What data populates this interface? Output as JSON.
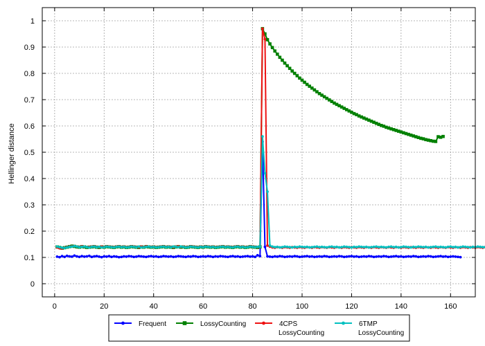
{
  "chart_data": {
    "type": "line",
    "title": "",
    "xlabel": "",
    "ylabel": "Hellinger distance",
    "xlim": [
      -5,
      170
    ],
    "ylim": [
      -0.05,
      1.05
    ],
    "xticks": [
      0,
      20,
      40,
      60,
      80,
      100,
      120,
      140,
      160
    ],
    "yticks": [
      0,
      0.1,
      0.2,
      0.3,
      0.4,
      0.5,
      0.6,
      0.7,
      0.8,
      0.9,
      1
    ],
    "grid": true,
    "legend_position": "bottom-center",
    "x_start": 1,
    "x_step": 1,
    "series": [
      {
        "name": "Frequent",
        "color": "#0000ff",
        "marker": "circle",
        "values": [
          0.103,
          0.101,
          0.105,
          0.102,
          0.106,
          0.104,
          0.103,
          0.107,
          0.104,
          0.102,
          0.105,
          0.103,
          0.104,
          0.106,
          0.102,
          0.104,
          0.105,
          0.103,
          0.101,
          0.104,
          0.103,
          0.105,
          0.102,
          0.104,
          0.103,
          0.101,
          0.102,
          0.104,
          0.103,
          0.105,
          0.104,
          0.102,
          0.103,
          0.105,
          0.104,
          0.103,
          0.102,
          0.104,
          0.105,
          0.103,
          0.104,
          0.102,
          0.103,
          0.105,
          0.104,
          0.103,
          0.104,
          0.102,
          0.103,
          0.105,
          0.104,
          0.103,
          0.102,
          0.104,
          0.103,
          0.105,
          0.104,
          0.102,
          0.103,
          0.104,
          0.103,
          0.105,
          0.104,
          0.102,
          0.104,
          0.103,
          0.105,
          0.104,
          0.103,
          0.102,
          0.104,
          0.105,
          0.103,
          0.104,
          0.102,
          0.103,
          0.104,
          0.105,
          0.103,
          0.104,
          0.102,
          0.108,
          0.105,
          0.54,
          0.14,
          0.104,
          0.103,
          0.102,
          0.104,
          0.103,
          0.105,
          0.104,
          0.102,
          0.103,
          0.104,
          0.103,
          0.105,
          0.104,
          0.102,
          0.103,
          0.104,
          0.105,
          0.103,
          0.104,
          0.102,
          0.103,
          0.104,
          0.103,
          0.105,
          0.104,
          0.102,
          0.103,
          0.104,
          0.103,
          0.105,
          0.104,
          0.102,
          0.103,
          0.104,
          0.105,
          0.103,
          0.104,
          0.102,
          0.103,
          0.104,
          0.103,
          0.105,
          0.104,
          0.102,
          0.103,
          0.104,
          0.103,
          0.105,
          0.104,
          0.102,
          0.103,
          0.104,
          0.105,
          0.103,
          0.104,
          0.102,
          0.103,
          0.104,
          0.103,
          0.105,
          0.104,
          0.102,
          0.103,
          0.104,
          0.103,
          0.105,
          0.104,
          0.102,
          0.103,
          0.104,
          0.105,
          0.103,
          0.104,
          0.102,
          0.103,
          0.104,
          0.103,
          0.102,
          0.101
        ]
      },
      {
        "name": "LossyCounting",
        "color": "#008000",
        "marker": "square",
        "values": [
          0.14,
          0.138,
          0.135,
          0.137,
          0.139,
          0.141,
          0.143,
          0.142,
          0.14,
          0.139,
          0.141,
          0.14,
          0.138,
          0.139,
          0.14,
          0.141,
          0.139,
          0.138,
          0.14,
          0.139,
          0.141,
          0.14,
          0.139,
          0.138,
          0.14,
          0.141,
          0.139,
          0.14,
          0.138,
          0.139,
          0.141,
          0.14,
          0.139,
          0.138,
          0.14,
          0.139,
          0.141,
          0.14,
          0.139,
          0.14,
          0.138,
          0.139,
          0.14,
          0.141,
          0.139,
          0.14,
          0.139,
          0.138,
          0.14,
          0.141,
          0.139,
          0.14,
          0.138,
          0.139,
          0.141,
          0.14,
          0.139,
          0.138,
          0.14,
          0.139,
          0.141,
          0.14,
          0.139,
          0.14,
          0.138,
          0.139,
          0.14,
          0.141,
          0.139,
          0.14,
          0.139,
          0.138,
          0.14,
          0.141,
          0.139,
          0.14,
          0.138,
          0.139,
          0.141,
          0.14,
          0.139,
          0.138,
          0.14,
          0.97,
          0.95,
          0.928,
          0.912,
          0.898,
          0.885,
          0.873,
          0.861,
          0.85,
          0.839,
          0.829,
          0.819,
          0.809,
          0.8,
          0.791,
          0.782,
          0.774,
          0.766,
          0.758,
          0.751,
          0.744,
          0.737,
          0.73,
          0.723,
          0.717,
          0.711,
          0.705,
          0.699,
          0.693,
          0.687,
          0.682,
          0.677,
          0.672,
          0.667,
          0.662,
          0.657,
          0.652,
          0.647,
          0.643,
          0.638,
          0.634,
          0.63,
          0.626,
          0.622,
          0.618,
          0.614,
          0.61,
          0.606,
          0.602,
          0.599,
          0.595,
          0.592,
          0.589,
          0.586,
          0.583,
          0.58,
          0.577,
          0.574,
          0.571,
          0.568,
          0.565,
          0.562,
          0.559,
          0.556,
          0.553,
          0.551,
          0.548,
          0.546,
          0.544,
          0.542,
          0.541,
          0.559,
          0.557,
          0.56
        ]
      },
      {
        "name": "4CPS LossyCounting",
        "color": "#ee1111",
        "marker": "circle",
        "values": [
          0.138,
          0.135,
          0.134,
          0.137,
          0.139,
          0.141,
          0.142,
          0.143,
          0.141,
          0.14,
          0.142,
          0.141,
          0.139,
          0.14,
          0.141,
          0.142,
          0.14,
          0.139,
          0.141,
          0.14,
          0.142,
          0.141,
          0.14,
          0.139,
          0.141,
          0.142,
          0.14,
          0.141,
          0.139,
          0.14,
          0.142,
          0.141,
          0.14,
          0.139,
          0.141,
          0.14,
          0.142,
          0.141,
          0.14,
          0.141,
          0.139,
          0.14,
          0.141,
          0.142,
          0.14,
          0.141,
          0.14,
          0.139,
          0.141,
          0.142,
          0.14,
          0.141,
          0.139,
          0.14,
          0.142,
          0.141,
          0.14,
          0.139,
          0.141,
          0.14,
          0.142,
          0.141,
          0.14,
          0.141,
          0.139,
          0.14,
          0.141,
          0.142,
          0.14,
          0.141,
          0.14,
          0.139,
          0.141,
          0.142,
          0.14,
          0.141,
          0.139,
          0.14,
          0.142,
          0.141,
          0.14,
          0.139,
          0.141,
          0.97,
          0.93,
          0.145,
          0.141,
          0.138,
          0.137,
          0.139,
          0.138,
          0.137,
          0.139,
          0.138,
          0.137,
          0.139,
          0.138,
          0.137,
          0.139,
          0.138,
          0.137,
          0.139,
          0.138,
          0.137,
          0.139,
          0.138,
          0.137,
          0.139,
          0.138,
          0.137,
          0.139,
          0.138,
          0.137,
          0.139,
          0.138,
          0.137,
          0.139,
          0.138,
          0.137,
          0.139,
          0.138,
          0.137,
          0.139,
          0.138,
          0.137,
          0.139,
          0.138,
          0.137,
          0.139,
          0.138,
          0.137,
          0.139,
          0.138,
          0.137,
          0.139,
          0.138,
          0.137,
          0.139,
          0.138,
          0.137,
          0.139,
          0.138,
          0.137,
          0.139,
          0.138,
          0.137,
          0.139,
          0.138,
          0.137,
          0.139,
          0.138,
          0.137,
          0.139,
          0.138,
          0.137,
          0.139,
          0.138,
          0.137,
          0.139,
          0.138,
          0.137,
          0.139,
          0.138,
          0.137,
          0.139,
          0.138,
          0.137,
          0.139,
          0.138,
          0.137,
          0.139,
          0.138,
          0.137,
          0.139
        ]
      },
      {
        "name": "6TMP LossyCounting",
        "color": "#00c0c0",
        "marker": "circle",
        "values": [
          0.141,
          0.139,
          0.137,
          0.136,
          0.138,
          0.14,
          0.141,
          0.143,
          0.141,
          0.139,
          0.14,
          0.141,
          0.139,
          0.138,
          0.14,
          0.141,
          0.139,
          0.14,
          0.138,
          0.139,
          0.141,
          0.14,
          0.139,
          0.138,
          0.14,
          0.141,
          0.139,
          0.14,
          0.138,
          0.139,
          0.141,
          0.14,
          0.139,
          0.141,
          0.138,
          0.139,
          0.14,
          0.141,
          0.139,
          0.14,
          0.138,
          0.139,
          0.14,
          0.141,
          0.139,
          0.14,
          0.139,
          0.141,
          0.14,
          0.139,
          0.141,
          0.14,
          0.138,
          0.139,
          0.141,
          0.14,
          0.139,
          0.138,
          0.14,
          0.139,
          0.141,
          0.14,
          0.139,
          0.14,
          0.138,
          0.139,
          0.14,
          0.141,
          0.139,
          0.14,
          0.139,
          0.138,
          0.14,
          0.141,
          0.139,
          0.14,
          0.138,
          0.139,
          0.141,
          0.14,
          0.139,
          0.14,
          0.14,
          0.56,
          0.42,
          0.35,
          0.145,
          0.141,
          0.139,
          0.14,
          0.138,
          0.139,
          0.141,
          0.14,
          0.139,
          0.138,
          0.14,
          0.139,
          0.141,
          0.14,
          0.139,
          0.14,
          0.138,
          0.139,
          0.14,
          0.141,
          0.139,
          0.14,
          0.139,
          0.138,
          0.14,
          0.141,
          0.139,
          0.14,
          0.138,
          0.139,
          0.141,
          0.14,
          0.139,
          0.138,
          0.14,
          0.139,
          0.141,
          0.14,
          0.139,
          0.14,
          0.138,
          0.139,
          0.14,
          0.141,
          0.139,
          0.14,
          0.139,
          0.138,
          0.14,
          0.141,
          0.139,
          0.14,
          0.138,
          0.139,
          0.141,
          0.14,
          0.139,
          0.138,
          0.14,
          0.139,
          0.141,
          0.14,
          0.139,
          0.14,
          0.138,
          0.139,
          0.14,
          0.141,
          0.139,
          0.14,
          0.139,
          0.138,
          0.14,
          0.141,
          0.139,
          0.14,
          0.138,
          0.139,
          0.141,
          0.14,
          0.139,
          0.138,
          0.14,
          0.139,
          0.141,
          0.14,
          0.139,
          0.139
        ]
      }
    ]
  }
}
